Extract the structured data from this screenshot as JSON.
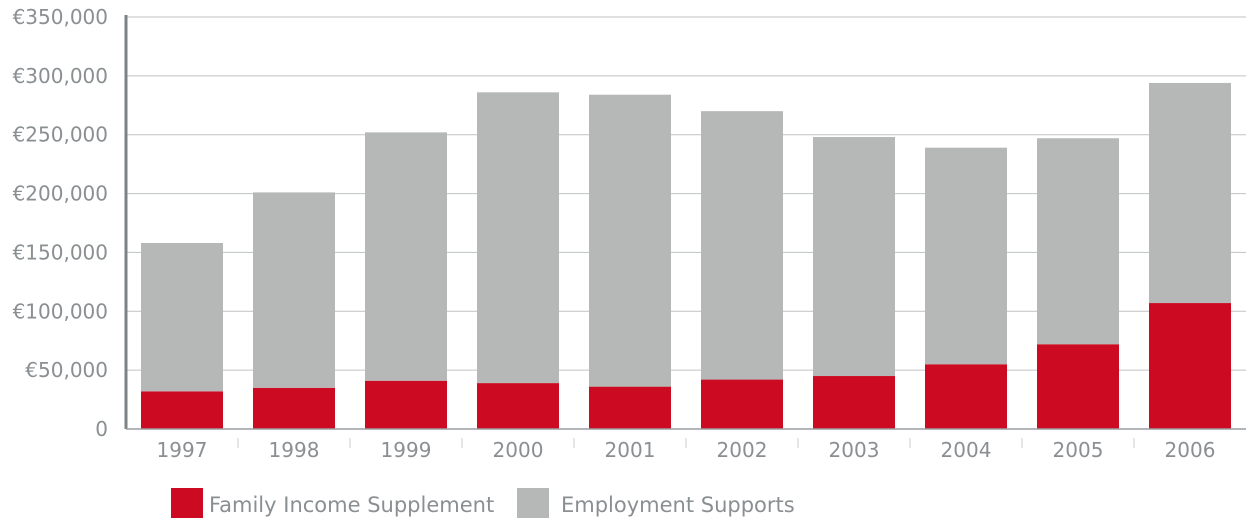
{
  "chart_data": {
    "type": "bar",
    "stacked": true,
    "categories": [
      "1997",
      "1998",
      "1999",
      "2000",
      "2001",
      "2002",
      "2003",
      "2004",
      "2005",
      "2006"
    ],
    "series": [
      {
        "name": "Family Income Supplement",
        "color": "#cc0a21",
        "values": [
          32000,
          35000,
          41000,
          39000,
          36000,
          42000,
          45000,
          55000,
          72000,
          107000
        ]
      },
      {
        "name": "Employment Supports",
        "color": "#b5b8b7",
        "values": [
          126000,
          166000,
          211000,
          247000,
          248000,
          228000,
          203000,
          184000,
          175000,
          187000
        ]
      }
    ],
    "y_ticks": [
      "0",
      "€50,000",
      "€100,000",
      "€150,000",
      "€200,000",
      "€250,000",
      "€300,000",
      "€350,000"
    ],
    "ylim": [
      0,
      350000
    ],
    "grid": true,
    "legend_position": "bottom-left"
  }
}
